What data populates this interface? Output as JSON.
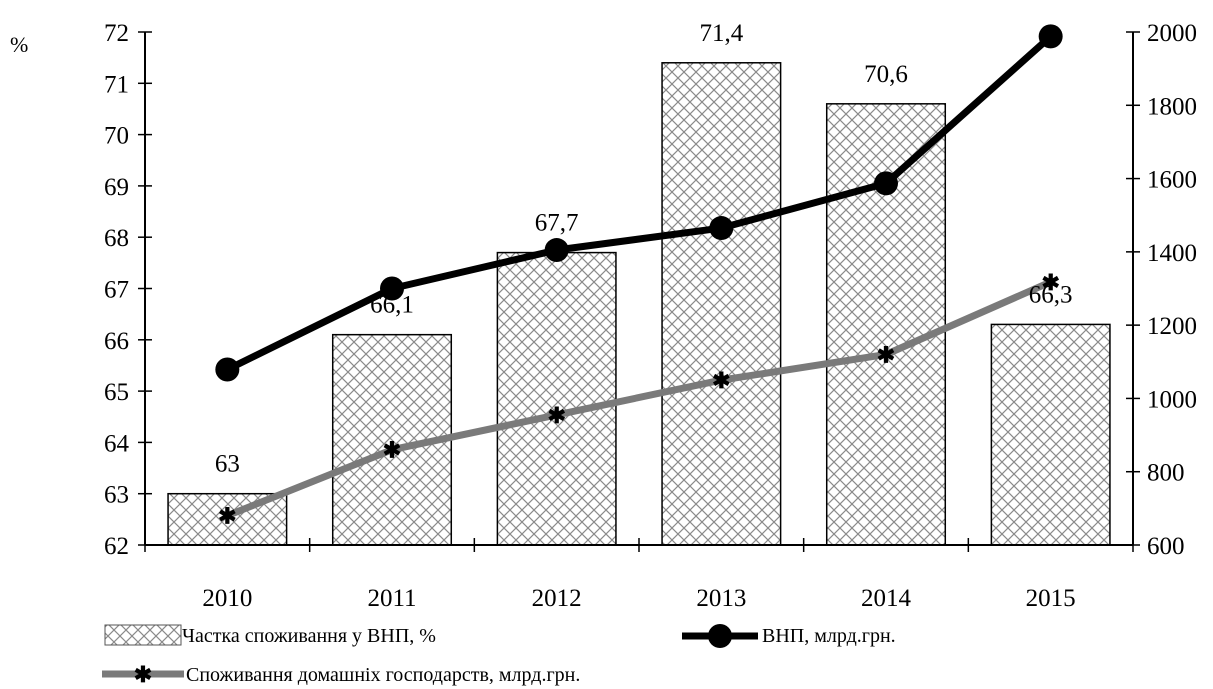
{
  "chart_data": {
    "type": "bar",
    "categories": [
      "2010",
      "2011",
      "2012",
      "2013",
      "2014",
      "2015"
    ],
    "series": [
      {
        "name": "Частка споживання у ВНП, %",
        "type": "bar",
        "axis": "left",
        "values": [
          63,
          66.1,
          67.7,
          71.4,
          70.6,
          66.3
        ],
        "data_labels": [
          "63",
          "66,1",
          "67,7",
          "71,4",
          "70,6",
          "66,3"
        ]
      },
      {
        "name": "ВНП, млрд.грн.",
        "type": "line",
        "axis": "right",
        "values": [
          1079,
          1300,
          1405,
          1465,
          1587,
          1988
        ]
      },
      {
        "name": "Споживання домашніх господарств, млрд.грн.",
        "type": "line",
        "axis": "right",
        "values": [
          680,
          860,
          955,
          1050,
          1120,
          1318
        ]
      }
    ],
    "y_left": {
      "label": "%",
      "min": 62,
      "max": 72,
      "ticks": [
        62,
        63,
        64,
        65,
        66,
        67,
        68,
        69,
        70,
        71,
        72
      ]
    },
    "y_right": {
      "label": "",
      "min": 600,
      "max": 2000,
      "ticks": [
        600,
        800,
        1000,
        1200,
        1400,
        1600,
        1800,
        2000
      ]
    },
    "grid": false,
    "legend": "bottom"
  }
}
